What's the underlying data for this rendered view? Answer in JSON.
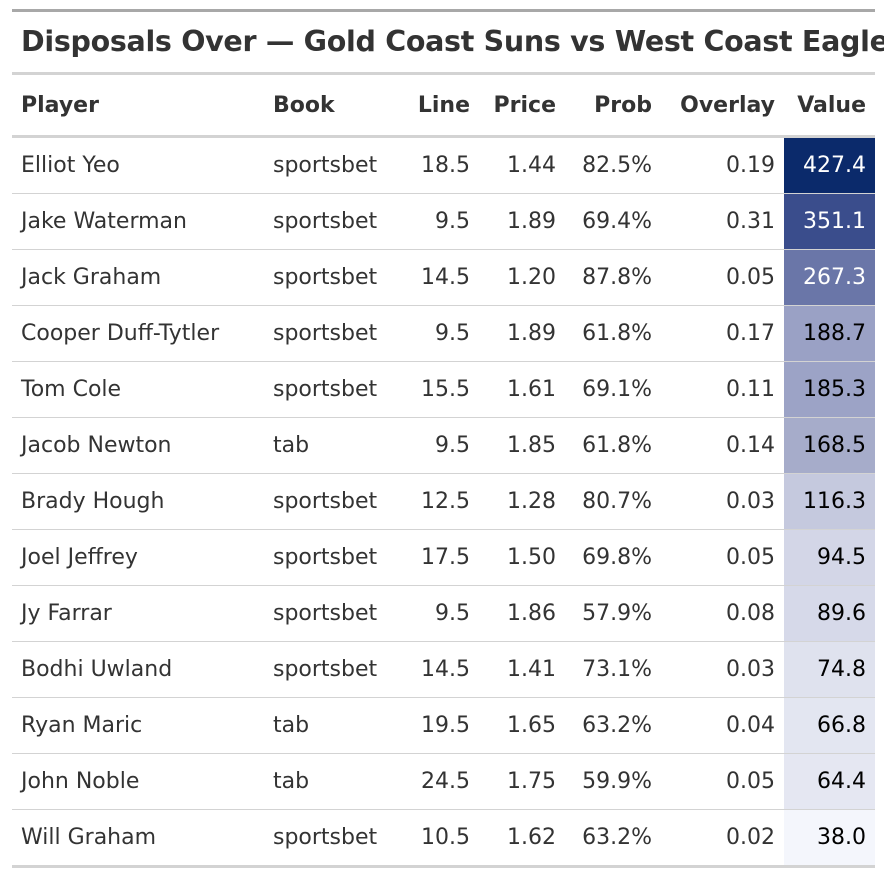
{
  "title": "Disposals Over — Gold Coast Suns vs West Coast Eagles",
  "columns": {
    "player": "Player",
    "book": "Book",
    "line": "Line",
    "price": "Price",
    "prob": "Prob",
    "overlay": "Overlay",
    "value": "Value"
  },
  "rows": [
    {
      "player": "Elliot Yeo",
      "book": "sportsbet",
      "line": "18.5",
      "price": "1.44",
      "prob": "82.5%",
      "overlay": "0.19",
      "value": "427.4",
      "value_bg": "#0b2a6b",
      "value_dark": true
    },
    {
      "player": "Jake Waterman",
      "book": "sportsbet",
      "line": "9.5",
      "price": "1.89",
      "prob": "69.4%",
      "overlay": "0.31",
      "value": "351.1",
      "value_bg": "#3a4d8c",
      "value_dark": true
    },
    {
      "player": "Jack Graham",
      "book": "sportsbet",
      "line": "14.5",
      "price": "1.20",
      "prob": "87.8%",
      "overlay": "0.05",
      "value": "267.3",
      "value_bg": "#6a76a8",
      "value_dark": true
    },
    {
      "player": "Cooper Duff-Tytler",
      "book": "sportsbet",
      "line": "9.5",
      "price": "1.89",
      "prob": "61.8%",
      "overlay": "0.17",
      "value": "188.7",
      "value_bg": "#9aa1c5",
      "value_dark": false
    },
    {
      "player": "Tom Cole",
      "book": "sportsbet",
      "line": "15.5",
      "price": "1.61",
      "prob": "69.1%",
      "overlay": "0.11",
      "value": "185.3",
      "value_bg": "#9ca3c6",
      "value_dark": false
    },
    {
      "player": "Jacob Newton",
      "book": "tab",
      "line": "9.5",
      "price": "1.85",
      "prob": "61.8%",
      "overlay": "0.14",
      "value": "168.5",
      "value_bg": "#a6acca",
      "value_dark": false
    },
    {
      "player": "Brady Hough",
      "book": "sportsbet",
      "line": "12.5",
      "price": "1.28",
      "prob": "80.7%",
      "overlay": "0.03",
      "value": "116.3",
      "value_bg": "#c5c9de",
      "value_dark": false
    },
    {
      "player": "Joel Jeffrey",
      "book": "sportsbet",
      "line": "17.5",
      "price": "1.50",
      "prob": "69.8%",
      "overlay": "0.05",
      "value": "94.5",
      "value_bg": "#d3d6e7",
      "value_dark": false
    },
    {
      "player": "Jy Farrar",
      "book": "sportsbet",
      "line": "9.5",
      "price": "1.86",
      "prob": "57.9%",
      "overlay": "0.08",
      "value": "89.6",
      "value_bg": "#d6d9e9",
      "value_dark": false
    },
    {
      "player": "Bodhi Uwland",
      "book": "sportsbet",
      "line": "14.5",
      "price": "1.41",
      "prob": "73.1%",
      "overlay": "0.03",
      "value": "74.8",
      "value_bg": "#dfe2ee",
      "value_dark": false
    },
    {
      "player": "Ryan Maric",
      "book": "tab",
      "line": "19.5",
      "price": "1.65",
      "prob": "63.2%",
      "overlay": "0.04",
      "value": "66.8",
      "value_bg": "#e3e6f1",
      "value_dark": false
    },
    {
      "player": "John Noble",
      "book": "tab",
      "line": "24.5",
      "price": "1.75",
      "prob": "59.9%",
      "overlay": "0.05",
      "value": "64.4",
      "value_bg": "#e5e7f2",
      "value_dark": false
    },
    {
      "player": "Will Graham",
      "book": "sportsbet",
      "line": "10.5",
      "price": "1.62",
      "prob": "63.2%",
      "overlay": "0.02",
      "value": "38.0",
      "value_bg": "#f4f6fc",
      "value_dark": false
    }
  ]
}
